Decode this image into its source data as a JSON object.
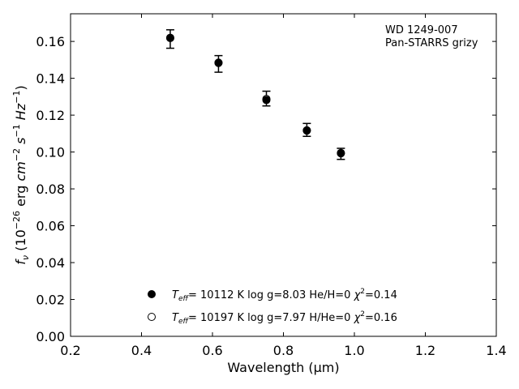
{
  "chart_data": {
    "type": "scatter",
    "xlabel": "Wavelength (μm)",
    "ylabel": {
      "f": "f",
      "nu": "ν",
      "p1": " (10",
      "e1": "−26",
      "p2": " erg ",
      "cm": "cm",
      "e2": "−2",
      "s": " s",
      "e3": "−1",
      "hz": " Hz",
      "e4": "−1",
      "close": ")"
    },
    "xlim": [
      0.2,
      1.4
    ],
    "ylim": [
      0.0,
      0.175
    ],
    "xticks": [
      "0.2",
      "0.4",
      "0.6",
      "0.8",
      "1.0",
      "1.2",
      "1.4"
    ],
    "xtick_values": [
      0.2,
      0.4,
      0.6,
      0.8,
      1.0,
      1.2,
      1.4
    ],
    "yticks": [
      "0.00",
      "0.02",
      "0.04",
      "0.06",
      "0.08",
      "0.10",
      "0.12",
      "0.14",
      "0.16"
    ],
    "ytick_values": [
      0.0,
      0.02,
      0.04,
      0.06,
      0.08,
      0.1,
      0.12,
      0.14,
      0.16
    ],
    "grid": false,
    "legend_placement": "lower-center",
    "annotation": [
      "WD 1249-007",
      "Pan-STARRS grizy"
    ],
    "observed": {
      "x": [
        0.481,
        0.617,
        0.752,
        0.866,
        0.962
      ],
      "y": [
        0.1613,
        0.1478,
        0.129,
        0.112,
        0.099
      ],
      "yerr": [
        0.005,
        0.0045,
        0.004,
        0.0035,
        0.003
      ]
    },
    "series": [
      {
        "marker": "filled",
        "label": {
          "t": "T",
          "teff": "eff",
          "mid": "= 10112 K  log g=8.03  He/H=0  ",
          "chi": "χ",
          "two": "2",
          "tail": "=0.14"
        },
        "x": [
          0.481,
          0.617,
          0.752,
          0.866,
          0.962
        ],
        "y": [
          0.1618,
          0.1485,
          0.1282,
          0.1116,
          0.0993
        ]
      },
      {
        "marker": "open",
        "label": {
          "t": "T",
          "teff": "eff",
          "mid": "= 10197 K  log g=7.97  H/He=0  ",
          "chi": "χ",
          "two": "2",
          "tail": "=0.16"
        },
        "x": [
          0.481,
          0.617,
          0.752,
          0.866,
          0.962
        ],
        "y": [
          0.162,
          0.1483,
          0.1288,
          0.1118,
          0.0995
        ]
      }
    ],
    "colors": {
      "marker": "#000000",
      "axis": "#000000",
      "background": "#ffffff"
    }
  }
}
